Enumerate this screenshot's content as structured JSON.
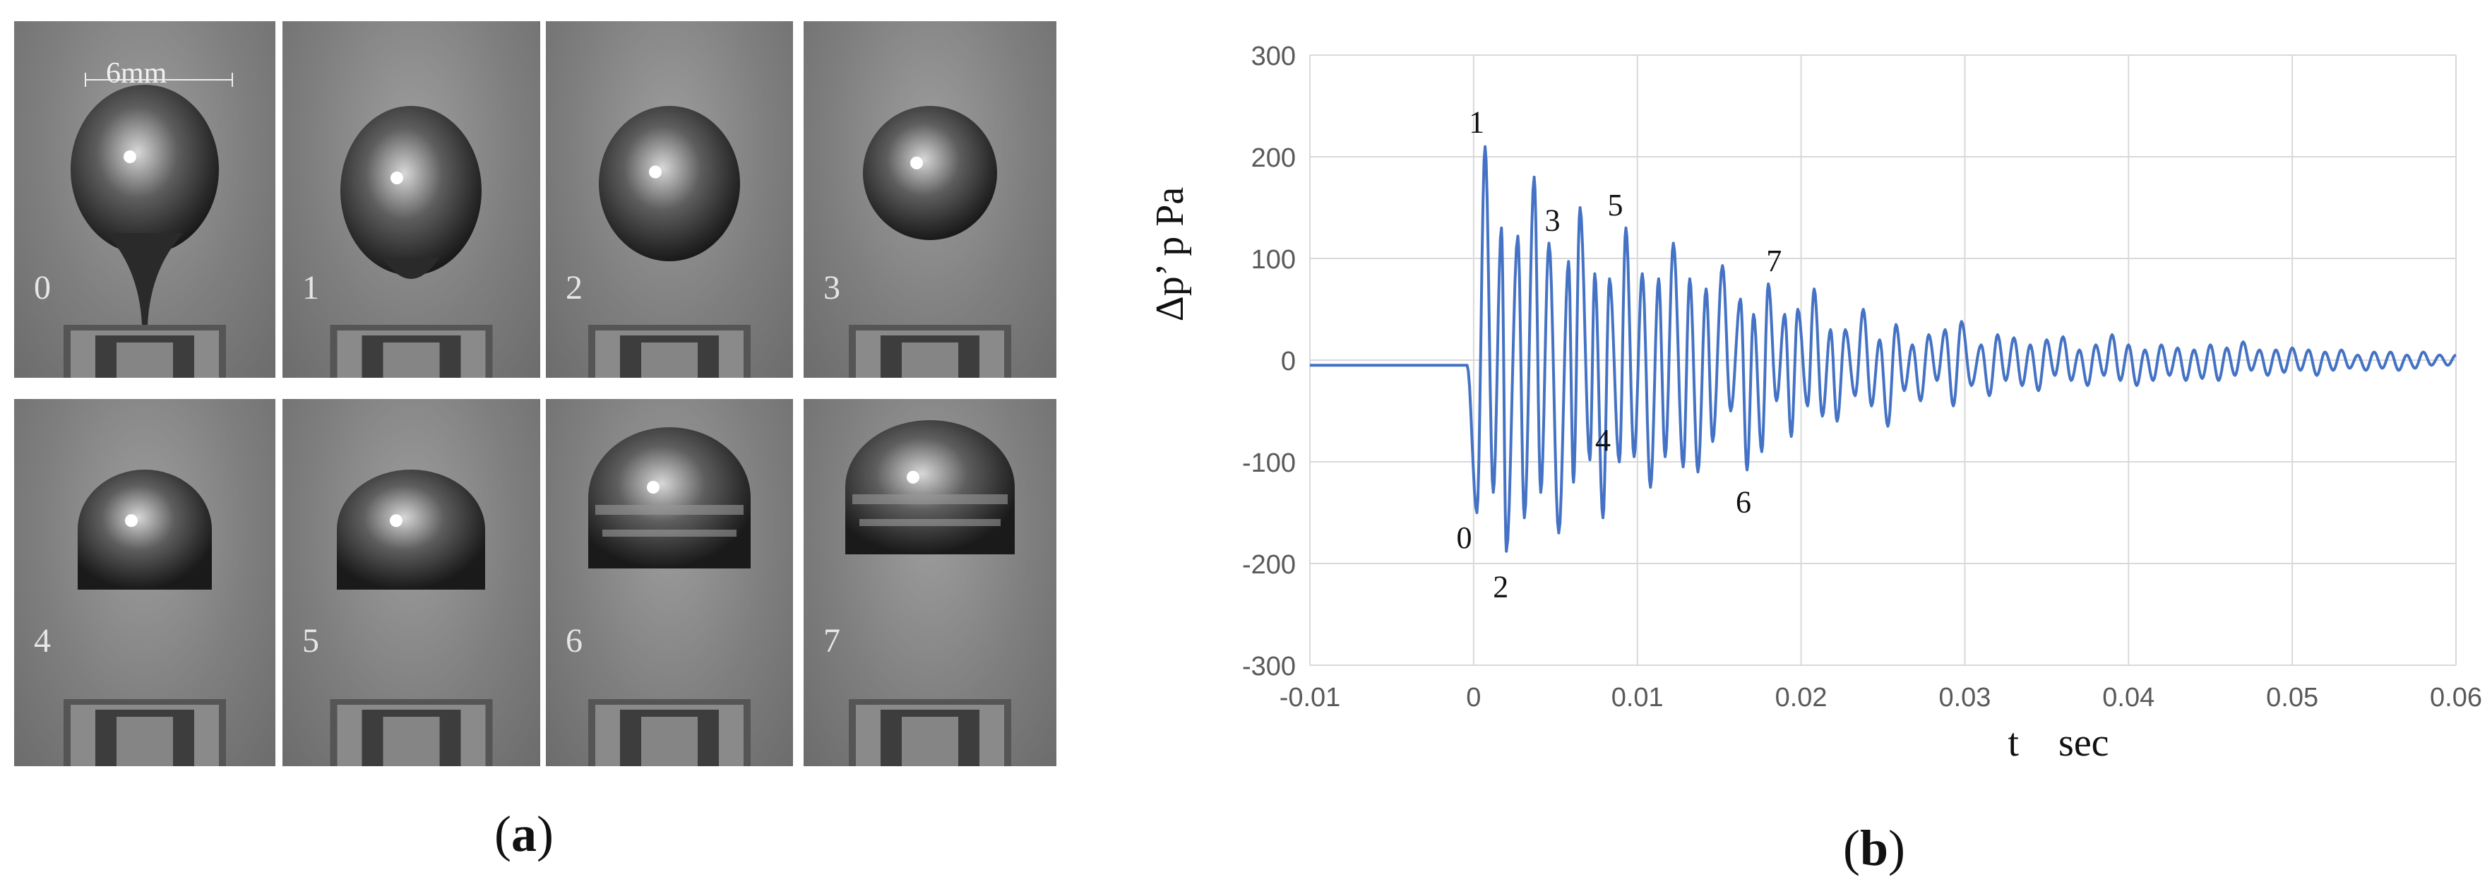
{
  "panel_a": {
    "label_open": "(",
    "label_letter": "a",
    "label_close": ")",
    "scale_label": "6mm",
    "frames": [
      "0",
      "1",
      "2",
      "3",
      "4",
      "5",
      "6",
      "7"
    ]
  },
  "panel_b": {
    "label_open": "(",
    "label_letter": "b",
    "label_close": ")"
  },
  "colors": {
    "series": "#4472c4",
    "grid": "#d9d9d9",
    "frame_bg": "#858585"
  },
  "chart_data": {
    "type": "line",
    "ylabel": "Δp’ p  Pa",
    "xlabel": "t    sec",
    "xlim": [
      -0.01,
      0.06
    ],
    "ylim": [
      -300,
      300
    ],
    "x_ticks": [
      "-0.01",
      "0",
      "0.01",
      "0.02",
      "0.03",
      "0.04",
      "0.05",
      "0.06"
    ],
    "y_ticks": [
      "300",
      "200",
      "100",
      "0",
      "-100",
      "-200",
      "-300"
    ],
    "grid": true,
    "legend": "none",
    "extrema": [
      [
        -0.01,
        -5
      ],
      [
        -0.0004,
        -5
      ],
      [
        0.0002,
        -150
      ],
      [
        0.0007,
        210
      ],
      [
        0.0012,
        -130
      ],
      [
        0.0017,
        130
      ],
      [
        0.002,
        -188
      ],
      [
        0.0027,
        122
      ],
      [
        0.0031,
        -155
      ],
      [
        0.0037,
        180
      ],
      [
        0.0041,
        -130
      ],
      [
        0.0046,
        115
      ],
      [
        0.0052,
        -170
      ],
      [
        0.0058,
        97
      ],
      [
        0.0061,
        -120
      ],
      [
        0.0065,
        150
      ],
      [
        0.0071,
        -98
      ],
      [
        0.0074,
        85
      ],
      [
        0.0079,
        -155
      ],
      [
        0.0083,
        80
      ],
      [
        0.0089,
        -100
      ],
      [
        0.0093,
        130
      ],
      [
        0.0098,
        -95
      ],
      [
        0.0103,
        85
      ],
      [
        0.0108,
        -125
      ],
      [
        0.0113,
        80
      ],
      [
        0.0117,
        -95
      ],
      [
        0.0122,
        115
      ],
      [
        0.0128,
        -105
      ],
      [
        0.0132,
        80
      ],
      [
        0.0137,
        -110
      ],
      [
        0.0142,
        70
      ],
      [
        0.0146,
        -80
      ],
      [
        0.0152,
        93
      ],
      [
        0.0157,
        -50
      ],
      [
        0.0163,
        60
      ],
      [
        0.0167,
        -108
      ],
      [
        0.0171,
        45
      ],
      [
        0.0176,
        -90
      ],
      [
        0.018,
        75
      ],
      [
        0.0185,
        -40
      ],
      [
        0.019,
        45
      ],
      [
        0.0194,
        -75
      ],
      [
        0.0198,
        50
      ],
      [
        0.0204,
        -45
      ],
      [
        0.0208,
        70
      ],
      [
        0.0213,
        -55
      ],
      [
        0.0218,
        30
      ],
      [
        0.0222,
        -60
      ],
      [
        0.0227,
        30
      ],
      [
        0.0233,
        -35
      ],
      [
        0.0238,
        50
      ],
      [
        0.0243,
        -45
      ],
      [
        0.0248,
        20
      ],
      [
        0.0253,
        -65
      ],
      [
        0.0258,
        35
      ],
      [
        0.0263,
        -30
      ],
      [
        0.0268,
        15
      ],
      [
        0.0273,
        -40
      ],
      [
        0.0278,
        25
      ],
      [
        0.0283,
        -20
      ],
      [
        0.0288,
        30
      ],
      [
        0.0293,
        -45
      ],
      [
        0.0298,
        38
      ],
      [
        0.0304,
        -25
      ],
      [
        0.031,
        15
      ],
      [
        0.0315,
        -35
      ],
      [
        0.032,
        25
      ],
      [
        0.0325,
        -20
      ],
      [
        0.033,
        22
      ],
      [
        0.0335,
        -25
      ],
      [
        0.034,
        15
      ],
      [
        0.0345,
        -30
      ],
      [
        0.035,
        20
      ],
      [
        0.0355,
        -15
      ],
      [
        0.036,
        23
      ],
      [
        0.0365,
        -20
      ],
      [
        0.037,
        10
      ],
      [
        0.0375,
        -25
      ],
      [
        0.038,
        15
      ],
      [
        0.0385,
        -15
      ],
      [
        0.039,
        25
      ],
      [
        0.0395,
        -20
      ],
      [
        0.04,
        15
      ],
      [
        0.0405,
        -25
      ],
      [
        0.041,
        10
      ],
      [
        0.0415,
        -20
      ],
      [
        0.042,
        15
      ],
      [
        0.0425,
        -15
      ],
      [
        0.043,
        12
      ],
      [
        0.0435,
        -20
      ],
      [
        0.044,
        10
      ],
      [
        0.0445,
        -18
      ],
      [
        0.045,
        15
      ],
      [
        0.0455,
        -20
      ],
      [
        0.046,
        12
      ],
      [
        0.0465,
        -15
      ],
      [
        0.047,
        18
      ],
      [
        0.0475,
        -10
      ],
      [
        0.048,
        10
      ],
      [
        0.0485,
        -15
      ],
      [
        0.049,
        10
      ],
      [
        0.0495,
        -12
      ],
      [
        0.05,
        12
      ],
      [
        0.0505,
        -10
      ],
      [
        0.051,
        10
      ],
      [
        0.0515,
        -15
      ],
      [
        0.052,
        8
      ],
      [
        0.0525,
        -10
      ],
      [
        0.053,
        10
      ],
      [
        0.0535,
        -8
      ],
      [
        0.054,
        5
      ],
      [
        0.0545,
        -10
      ],
      [
        0.055,
        8
      ],
      [
        0.0555,
        -8
      ],
      [
        0.056,
        8
      ],
      [
        0.0565,
        -10
      ],
      [
        0.057,
        5
      ],
      [
        0.0575,
        -8
      ],
      [
        0.058,
        8
      ],
      [
        0.0585,
        -5
      ],
      [
        0.059,
        5
      ],
      [
        0.0595,
        -5
      ],
      [
        0.06,
        5
      ]
    ],
    "annotations": [
      {
        "text": "0",
        "x": 0.0002,
        "y": -150
      },
      {
        "text": "1",
        "x": 0.0007,
        "y": 210
      },
      {
        "text": "2",
        "x": 0.002,
        "y": -188
      },
      {
        "text": "3",
        "x": 0.0046,
        "y": 115
      },
      {
        "text": "4",
        "x": 0.0079,
        "y": -75
      },
      {
        "text": "5",
        "x": 0.0093,
        "y": 130
      },
      {
        "text": "6",
        "x": 0.0167,
        "y": -108
      },
      {
        "text": "7",
        "x": 0.018,
        "y": 75
      }
    ]
  }
}
